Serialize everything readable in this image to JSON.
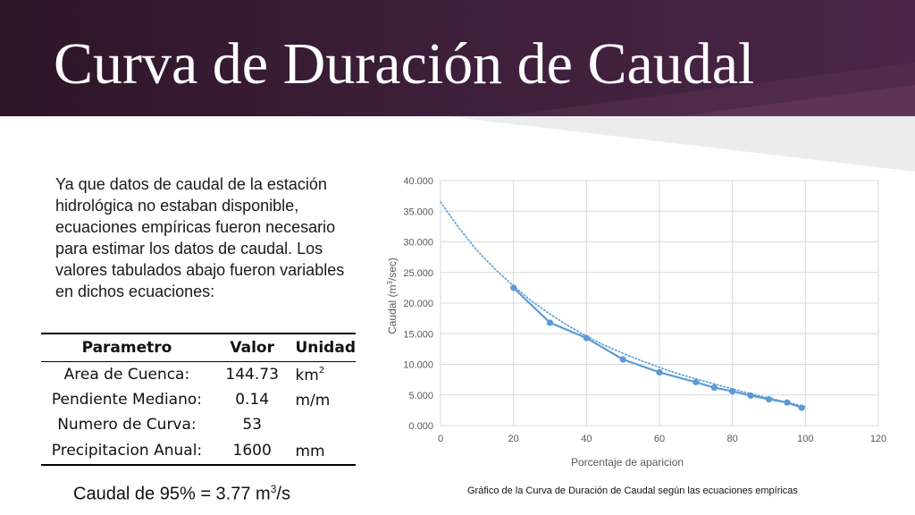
{
  "slide": {
    "title": "Curva de Duración de Caudal",
    "intro": "Ya que datos de caudal de la estación hidrológica no estaban disponible, ecuaciones empíricas fueron necesario para estimar los datos de caudal. Los valores tabulados abajo fueron variables en dichos ecuaciones:",
    "caption": "Gráfico de la Curva de Duración de Caudal según las ecuaciones empíricas",
    "colors": {
      "banner": "#3e1f3b",
      "series": "#5b9bd5"
    }
  },
  "table": {
    "headers": [
      "Parametro",
      "Valor",
      "Unidad"
    ],
    "rows": [
      {
        "parametro": "Area de Cuenca:",
        "valor": "144.73",
        "unidad": "km",
        "unidad_sup": "2"
      },
      {
        "parametro": "Pendiente Mediano:",
        "valor": "0.14",
        "unidad": "m/m",
        "unidad_sup": ""
      },
      {
        "parametro": "Numero de Curva:",
        "valor": "53",
        "unidad": "",
        "unidad_sup": ""
      },
      {
        "parametro": "Precipitacion Anual:",
        "valor": "1600",
        "unidad": "mm",
        "unidad_sup": ""
      }
    ]
  },
  "summary": {
    "prefix": "Caudal de 95% = 3.77 m",
    "sup": "3",
    "suffix": "/s"
  },
  "chart_data": {
    "type": "line",
    "xlabel": "Porcentaje de aparicion",
    "ylabel_parts": {
      "before": "Caudal (m",
      "sup": "3",
      "after": "/sec)"
    },
    "xlim": [
      0,
      120
    ],
    "ylim": [
      0,
      40000
    ],
    "x_ticks": [
      "0",
      "20",
      "40",
      "60",
      "80",
      "100",
      "120"
    ],
    "y_ticks": [
      "0.000",
      "5.000",
      "10.000",
      "15.000",
      "20.000",
      "25.000",
      "30.000",
      "35.000",
      "40.000"
    ],
    "grid": true,
    "series": [
      {
        "style": "solid-with-markers",
        "x": [
          20,
          30,
          40,
          50,
          60,
          70,
          75,
          80,
          85,
          90,
          95,
          99
        ],
        "y": [
          22500,
          16800,
          14300,
          10800,
          8700,
          7100,
          6200,
          5600,
          4900,
          4300,
          3770,
          2900
        ]
      },
      {
        "style": "dotted-trendline",
        "x": [
          0,
          5,
          10,
          15,
          20,
          25,
          30,
          35,
          40,
          45,
          50,
          55,
          60,
          65,
          70,
          75,
          80,
          85,
          90,
          95,
          100
        ],
        "y": [
          36500,
          32300,
          28600,
          25500,
          22800,
          20300,
          18200,
          16300,
          14600,
          13100,
          11800,
          10600,
          9500,
          8500,
          7600,
          6800,
          6000,
          5200,
          4500,
          3800,
          3100
        ]
      }
    ]
  }
}
